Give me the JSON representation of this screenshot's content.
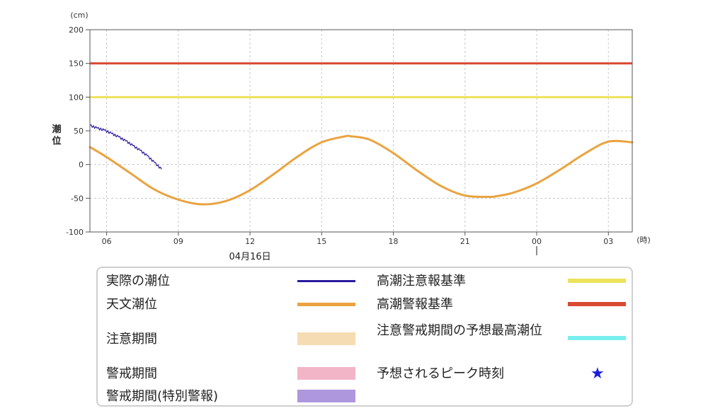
{
  "chart_data": {
    "type": "line",
    "y_unit": "(cm)",
    "x_unit": "(時)",
    "ylabel": "潮位",
    "ylim": [
      -100,
      200
    ],
    "yticks": [
      -100,
      -50,
      0,
      50,
      100,
      150,
      200
    ],
    "x_range_hours": [
      5.3,
      28.0
    ],
    "x_ticks": [
      {
        "hour": 6,
        "label": "06"
      },
      {
        "hour": 9,
        "label": "09"
      },
      {
        "hour": 12,
        "label": "12"
      },
      {
        "hour": 15,
        "label": "15"
      },
      {
        "hour": 18,
        "label": "18"
      },
      {
        "hour": 21,
        "label": "21"
      },
      {
        "hour": 24,
        "label": "00"
      },
      {
        "hour": 27,
        "label": "03"
      }
    ],
    "date_label": "04月16日",
    "date_label_hour": 12,
    "day_marker_hour": 24,
    "grid": true,
    "thresholds": [
      {
        "key": "warning",
        "value": 150,
        "color": "#d94a33"
      },
      {
        "key": "advisory",
        "value": 100,
        "color": "#ece35a"
      }
    ],
    "series": [
      {
        "key": "actual",
        "color": "#2a1a9e",
        "x": [
          5.3,
          5.6,
          5.9,
          6.2,
          6.5,
          6.8,
          7.1,
          7.4,
          7.7,
          8.0,
          8.3
        ],
        "y": [
          58,
          54,
          51,
          46,
          41,
          35,
          28,
          21,
          13,
          3,
          -7
        ]
      },
      {
        "key": "astronomical",
        "color": "#eaa340",
        "x": [
          5.3,
          6,
          7,
          8,
          9,
          10,
          11,
          12,
          13,
          14,
          15,
          16,
          16.2,
          17,
          18,
          19,
          20,
          21,
          22,
          22.3,
          23,
          24,
          25,
          26,
          27,
          28
        ],
        "y": [
          26,
          11,
          -13,
          -37,
          -52,
          -59,
          -54,
          -38,
          -14,
          12,
          33,
          42,
          42,
          37,
          17,
          -9,
          -32,
          -46,
          -48,
          -47,
          -42,
          -28,
          -7,
          16,
          34,
          33
        ]
      }
    ]
  },
  "legend": [
    {
      "label": "実際の潮位",
      "color": "#2a1a9e",
      "kind": "line"
    },
    {
      "label": "天文潮位",
      "color": "#eaa340",
      "kind": "line"
    },
    {
      "label": "注意期間",
      "color": "#f6dcb2",
      "kind": "band"
    },
    {
      "label": "警戒期間",
      "color": "#f2b5c8",
      "kind": "band"
    },
    {
      "label": "警戒期間(特別警報)",
      "color": "#ae97dc",
      "kind": "band"
    },
    {
      "label": "高潮注意報基準",
      "color": "#ece35a",
      "kind": "line"
    },
    {
      "label": "高潮警報基準",
      "color": "#d94a33",
      "kind": "line"
    },
    {
      "label": "注意警戒期間の予想最高潮位",
      "color": "#79eeee",
      "kind": "line"
    },
    {
      "label": "予想されるピーク時刻",
      "color": "#1a1adf",
      "kind": "star",
      "icon": "star-icon"
    }
  ]
}
